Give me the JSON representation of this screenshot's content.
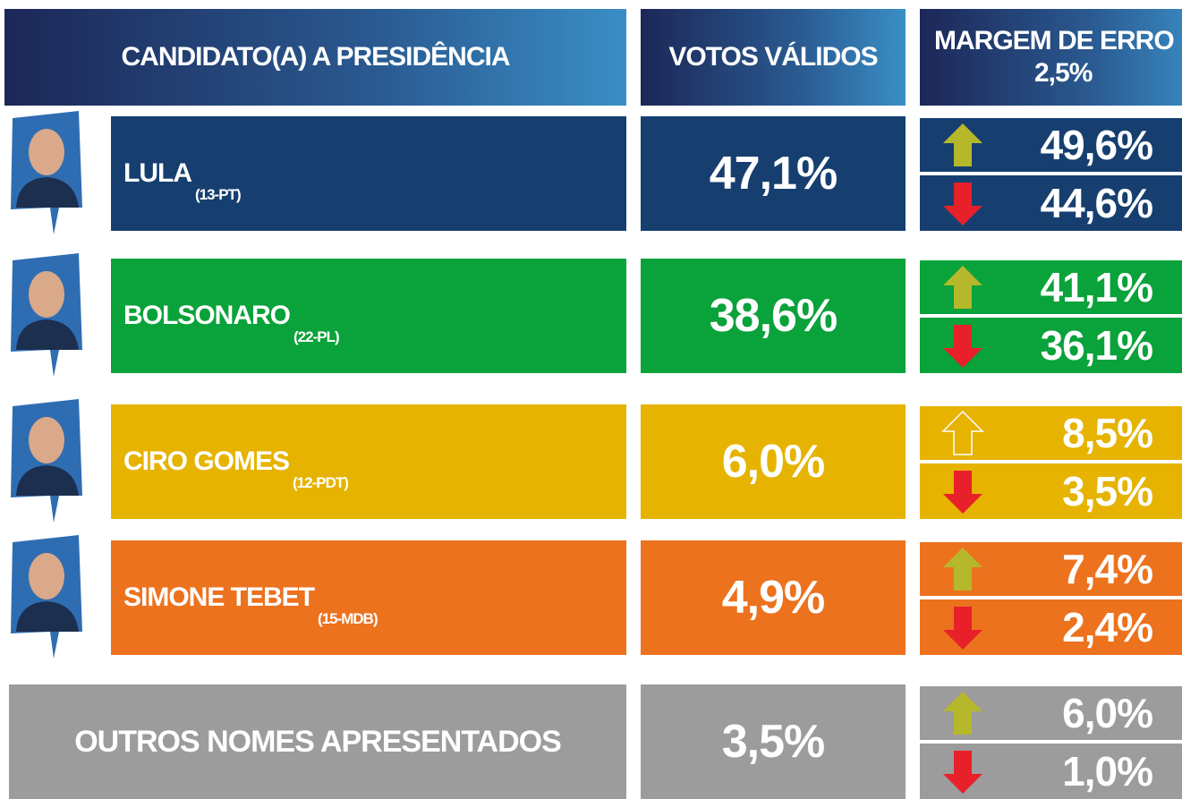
{
  "header": {
    "candidate": "CANDIDATO(A) A PRESIDÊNCIA",
    "votes": "VOTOS VÁLIDOS",
    "margin": "MARGEM DE ERRO",
    "margin_value": "2,5%"
  },
  "rows": [
    {
      "name": "LULA",
      "party": "(13-PT)",
      "votes": "47,1%",
      "upper": "49,6%",
      "lower": "44,6%"
    },
    {
      "name": "BOLSONARO",
      "party": "(22-PL)",
      "votes": "38,6%",
      "upper": "41,1%",
      "lower": "36,1%"
    },
    {
      "name": "CIRO GOMES",
      "party": "(12-PDT)",
      "votes": "6,0%",
      "upper": "8,5%",
      "lower": "3,5%"
    },
    {
      "name": "SIMONE TEBET",
      "party": "(15-MDB)",
      "votes": "4,9%",
      "upper": "7,4%",
      "lower": "2,4%"
    },
    {
      "name": "OUTROS NOMES APRESENTADOS",
      "votes": "3,5%",
      "upper": "6,0%",
      "lower": "1,0%"
    }
  ]
}
